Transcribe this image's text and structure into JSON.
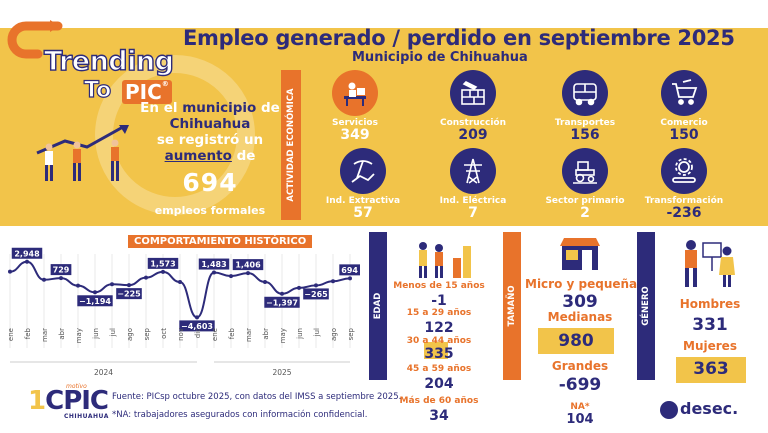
{
  "header": {
    "title": "Empleo generado / perdido en septiembre 2025",
    "subtitle": "Municipio de Chihuahua"
  },
  "brand": {
    "line1": "Trending",
    "to": "To",
    "pic": "PIC",
    "reg": "®"
  },
  "intro": {
    "p1": "En el ",
    "p2": "municipio",
    "p3": " de",
    "p4": "Chihuahua",
    "p5": "se registró un",
    "p6": "aumento",
    "p7": " de",
    "number": "694",
    "suffix": "empleos formales"
  },
  "activity_label": "ACTIVIDAD ECONÓMICA",
  "sectors": [
    {
      "name": "Servicios",
      "value": "349",
      "icon": "office-worker-icon"
    },
    {
      "name": "Construcción",
      "value": "209",
      "icon": "brick-wall-icon"
    },
    {
      "name": "Transportes",
      "value": "156",
      "icon": "bus-icon"
    },
    {
      "name": "Comercio",
      "value": "150",
      "icon": "shopping-cart-icon"
    },
    {
      "name": "Ind. Extractiva",
      "value": "57",
      "icon": "pickaxe-icon"
    },
    {
      "name": "Ind. Eléctrica",
      "value": "7",
      "icon": "power-tower-icon"
    },
    {
      "name": "Sector primario",
      "value": "2",
      "icon": "tractor-icon"
    },
    {
      "name": "Transformación",
      "value": "-236",
      "icon": "gears-icon"
    }
  ],
  "chart_data": {
    "type": "line",
    "title": "COMPORTAMIENTO HISTÓRICO",
    "categories": [
      "ene",
      "feb",
      "mar",
      "abr",
      "may",
      "jun",
      "jul",
      "ago",
      "sep",
      "oct",
      "nov",
      "dic",
      "ene",
      "feb",
      "mar",
      "abr",
      "may",
      "jun",
      "jul",
      "ago",
      "sep"
    ],
    "values": [
      1600,
      2948,
      500,
      729,
      -300,
      -1194,
      -100,
      -225,
      800,
      1573,
      200,
      -4603,
      1483,
      1000,
      1406,
      200,
      -1397,
      -600,
      -265,
      300,
      694
    ],
    "labels": {
      "1": "2,948",
      "3": "729",
      "5": "−1,194",
      "7": "−225",
      "9": "1,573",
      "11": "−4,603",
      "12": "1,483",
      "14": "1,406",
      "16": "−1,397",
      "18": "−265",
      "20": "694"
    },
    "years": [
      {
        "label": "2024",
        "from": 0,
        "to": 11
      },
      {
        "label": "2025",
        "from": 12,
        "to": 20
      }
    ],
    "ylim": [
      -5500,
      4000
    ],
    "grid": true
  },
  "age": {
    "label": "EDAD",
    "groups": [
      {
        "label": "Menos de 15 años",
        "value": "-1"
      },
      {
        "label": "15 a 29 años",
        "value": "122"
      },
      {
        "label": "30 a 44 años",
        "value": "335"
      },
      {
        "label": "45 a 59 años",
        "value": "204"
      },
      {
        "label": "Más de 60 años",
        "value": "34"
      }
    ]
  },
  "size": {
    "label": "TAMAÑO",
    "groups": [
      {
        "label": "Micro y pequeñas",
        "value": "309"
      },
      {
        "label": "Medianas",
        "value": "980"
      },
      {
        "label": "Grandes",
        "value": "-699"
      },
      {
        "label": "NA*",
        "value": "104"
      }
    ]
  },
  "gender": {
    "label": "GÉNERO",
    "groups": [
      {
        "label": "Hombres",
        "value": "331"
      },
      {
        "label": "Mujeres",
        "value": "363"
      }
    ]
  },
  "footer": {
    "source": "Fuente: PICsp octubre 2025, con datos del IMSS a septiembre 2025.",
    "note": "*NA: trabajadores asegurados con información confidencial.",
    "logo_one": "1",
    "logo_c": "C",
    "logo_pic": "PIC",
    "logo_sub": "CHIHUAHUA",
    "logo_motive": "motivo",
    "desec": "desec."
  },
  "colors": {
    "navy": "#2d2b7a",
    "orange": "#e8732b",
    "yellow": "#f2c44a"
  }
}
